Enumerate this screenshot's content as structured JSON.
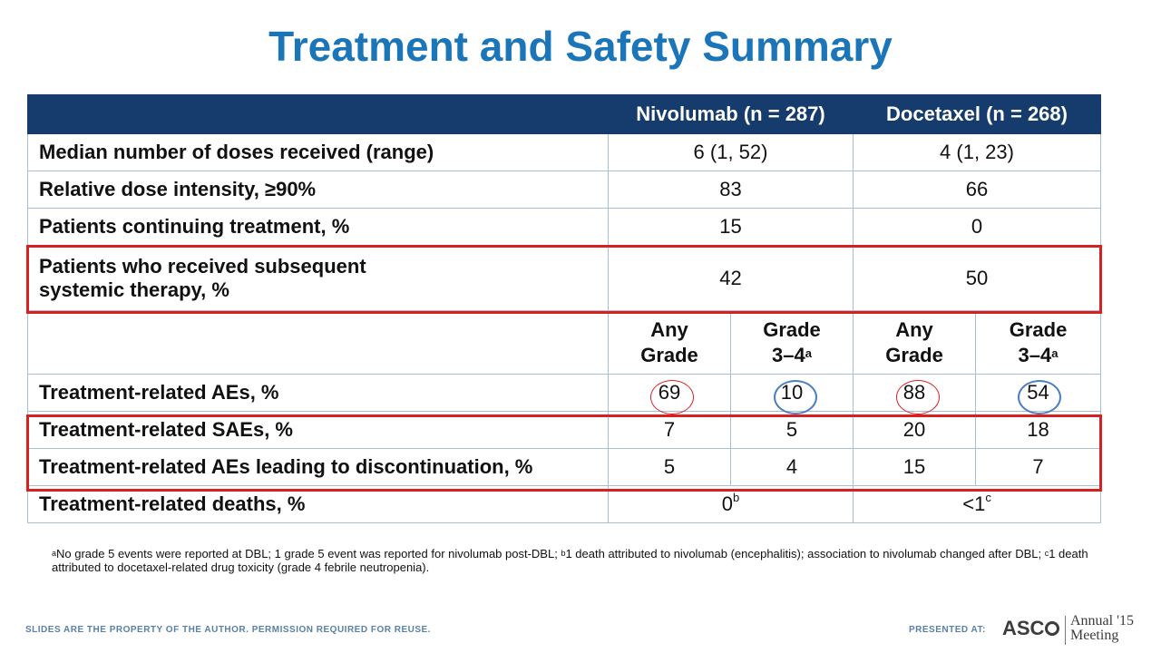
{
  "title": "Treatment and Safety Summary",
  "table": {
    "col_nivolumab": "Nivolumab (n = 287)",
    "col_docetaxel": "Docetaxel (n = 268)",
    "rows": [
      {
        "label": "Median number of doses received (range)",
        "nivo": "6 (1, 52)",
        "doce": "4 (1, 23)"
      },
      {
        "label": "Relative dose intensity, ≥90%",
        "nivo": "83",
        "doce": "66"
      },
      {
        "label": "Patients continuing treatment, %",
        "nivo": "15",
        "doce": "0"
      },
      {
        "label_line1": "Patients who received subsequent",
        "label_line2": "systemic therapy, %",
        "nivo": "42",
        "doce": "50"
      }
    ],
    "subheaders": {
      "any_l1": "Any",
      "any_l2": "Grade",
      "g34_l1": "Grade",
      "g34_l2": "3–4",
      "g34_sup": "a"
    },
    "ae_rows": [
      {
        "label": "Treatment-related AEs, %",
        "values": [
          "69",
          "10",
          "88",
          "54"
        ]
      },
      {
        "label": "Treatment-related SAEs, %",
        "values": [
          "7",
          "5",
          "20",
          "18"
        ]
      },
      {
        "label": "Treatment-related AEs leading to discontinuation, %",
        "values": [
          "5",
          "4",
          "15",
          "7"
        ]
      }
    ],
    "deaths": {
      "label": "Treatment-related deaths, %",
      "nivo": "0",
      "nivo_sup": "b",
      "doce": "<1",
      "doce_sup": "c"
    }
  },
  "footnote": {
    "sup_a": "a",
    "text_a": "No grade 5 events were reported at DBL; 1 grade 5 event was reported for nivolumab post-DBL; ",
    "sup_b": "b",
    "text_b": "1 death attributed to nivolumab (encephalitis); association to nivolumab changed after DBL; ",
    "sup_c": "c",
    "text_c": "1 death attributed to docetaxel-related drug toxicity (grade 4 febrile neutropenia)."
  },
  "footer": {
    "disclaimer": "SLIDES ARE THE PROPERTY OF THE AUTHOR. PERMISSION REQUIRED FOR REUSE.",
    "presented_at": "PRESENTED AT:",
    "asco": "ASC",
    "annual": "Annual",
    "year": "'15",
    "meeting": "Meeting"
  },
  "colors": {
    "title": "#1a76b8",
    "header_bg": "#163c6d",
    "highlight_red": "#d92020",
    "highlight_blue": "#4a7fc4"
  }
}
